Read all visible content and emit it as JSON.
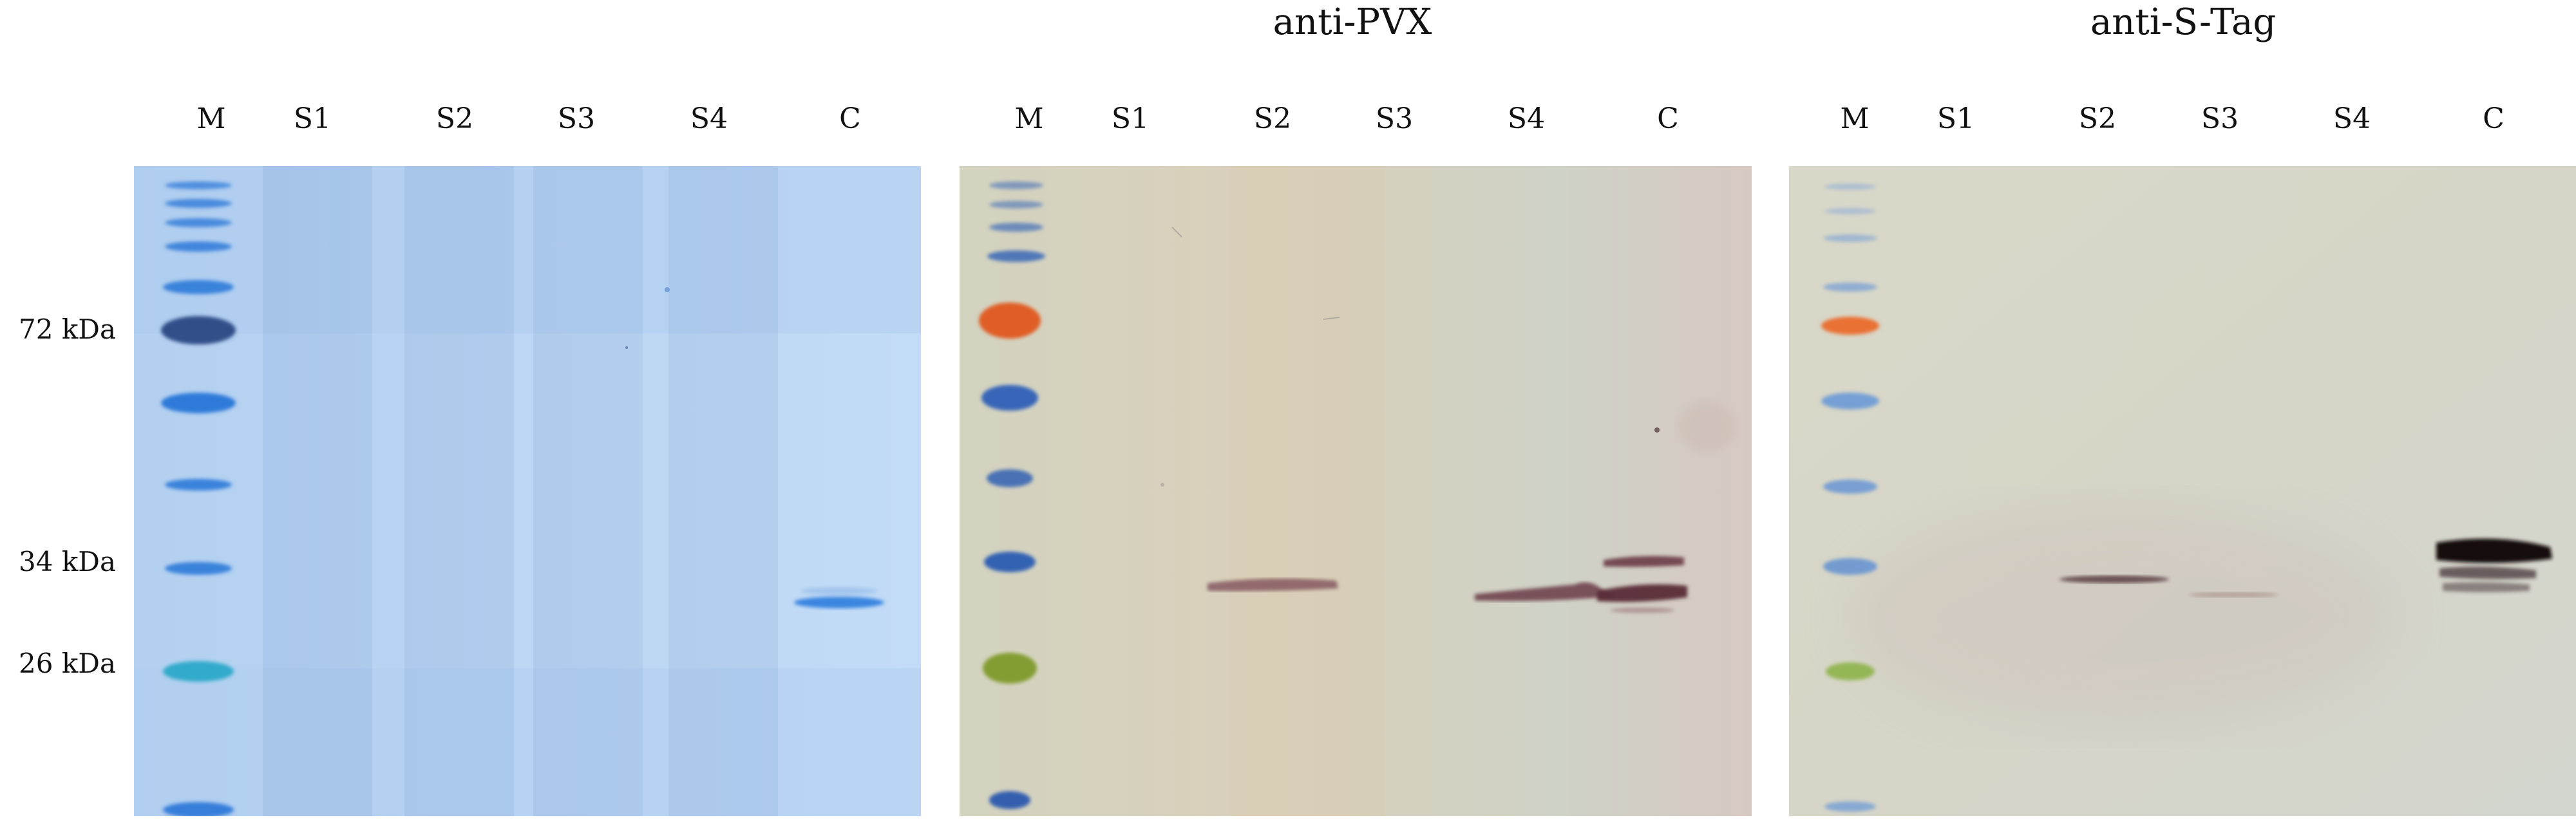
{
  "panels": [
    {
      "id": "coomassie",
      "title": "",
      "lanes": [
        "M",
        "S1",
        "S2",
        "S3",
        "S4",
        "C"
      ],
      "background": "#bcd6f2"
    },
    {
      "id": "anti-pvx",
      "title": "anti-PVX",
      "lanes": [
        "M",
        "S1",
        "S2",
        "S3",
        "S4",
        "C"
      ],
      "background": "#d7d3c0"
    },
    {
      "id": "anti-stag",
      "title": "anti-S-Tag",
      "lanes": [
        "M",
        "S1",
        "S2",
        "S3",
        "S4",
        "C"
      ],
      "background": "#d9d7c7"
    }
  ],
  "markers": [
    {
      "label": "72 kDa"
    },
    {
      "label": "34 kDa"
    },
    {
      "label": "26 kDa"
    }
  ],
  "colors": {
    "coomassie_band": "#3f86df",
    "marker_blue": "#2f78d8",
    "marker_orange": "#e66a2a",
    "marker_green": "#86a82e",
    "pvx_band": "#6a3b46",
    "stag_band": "#1a1218"
  }
}
